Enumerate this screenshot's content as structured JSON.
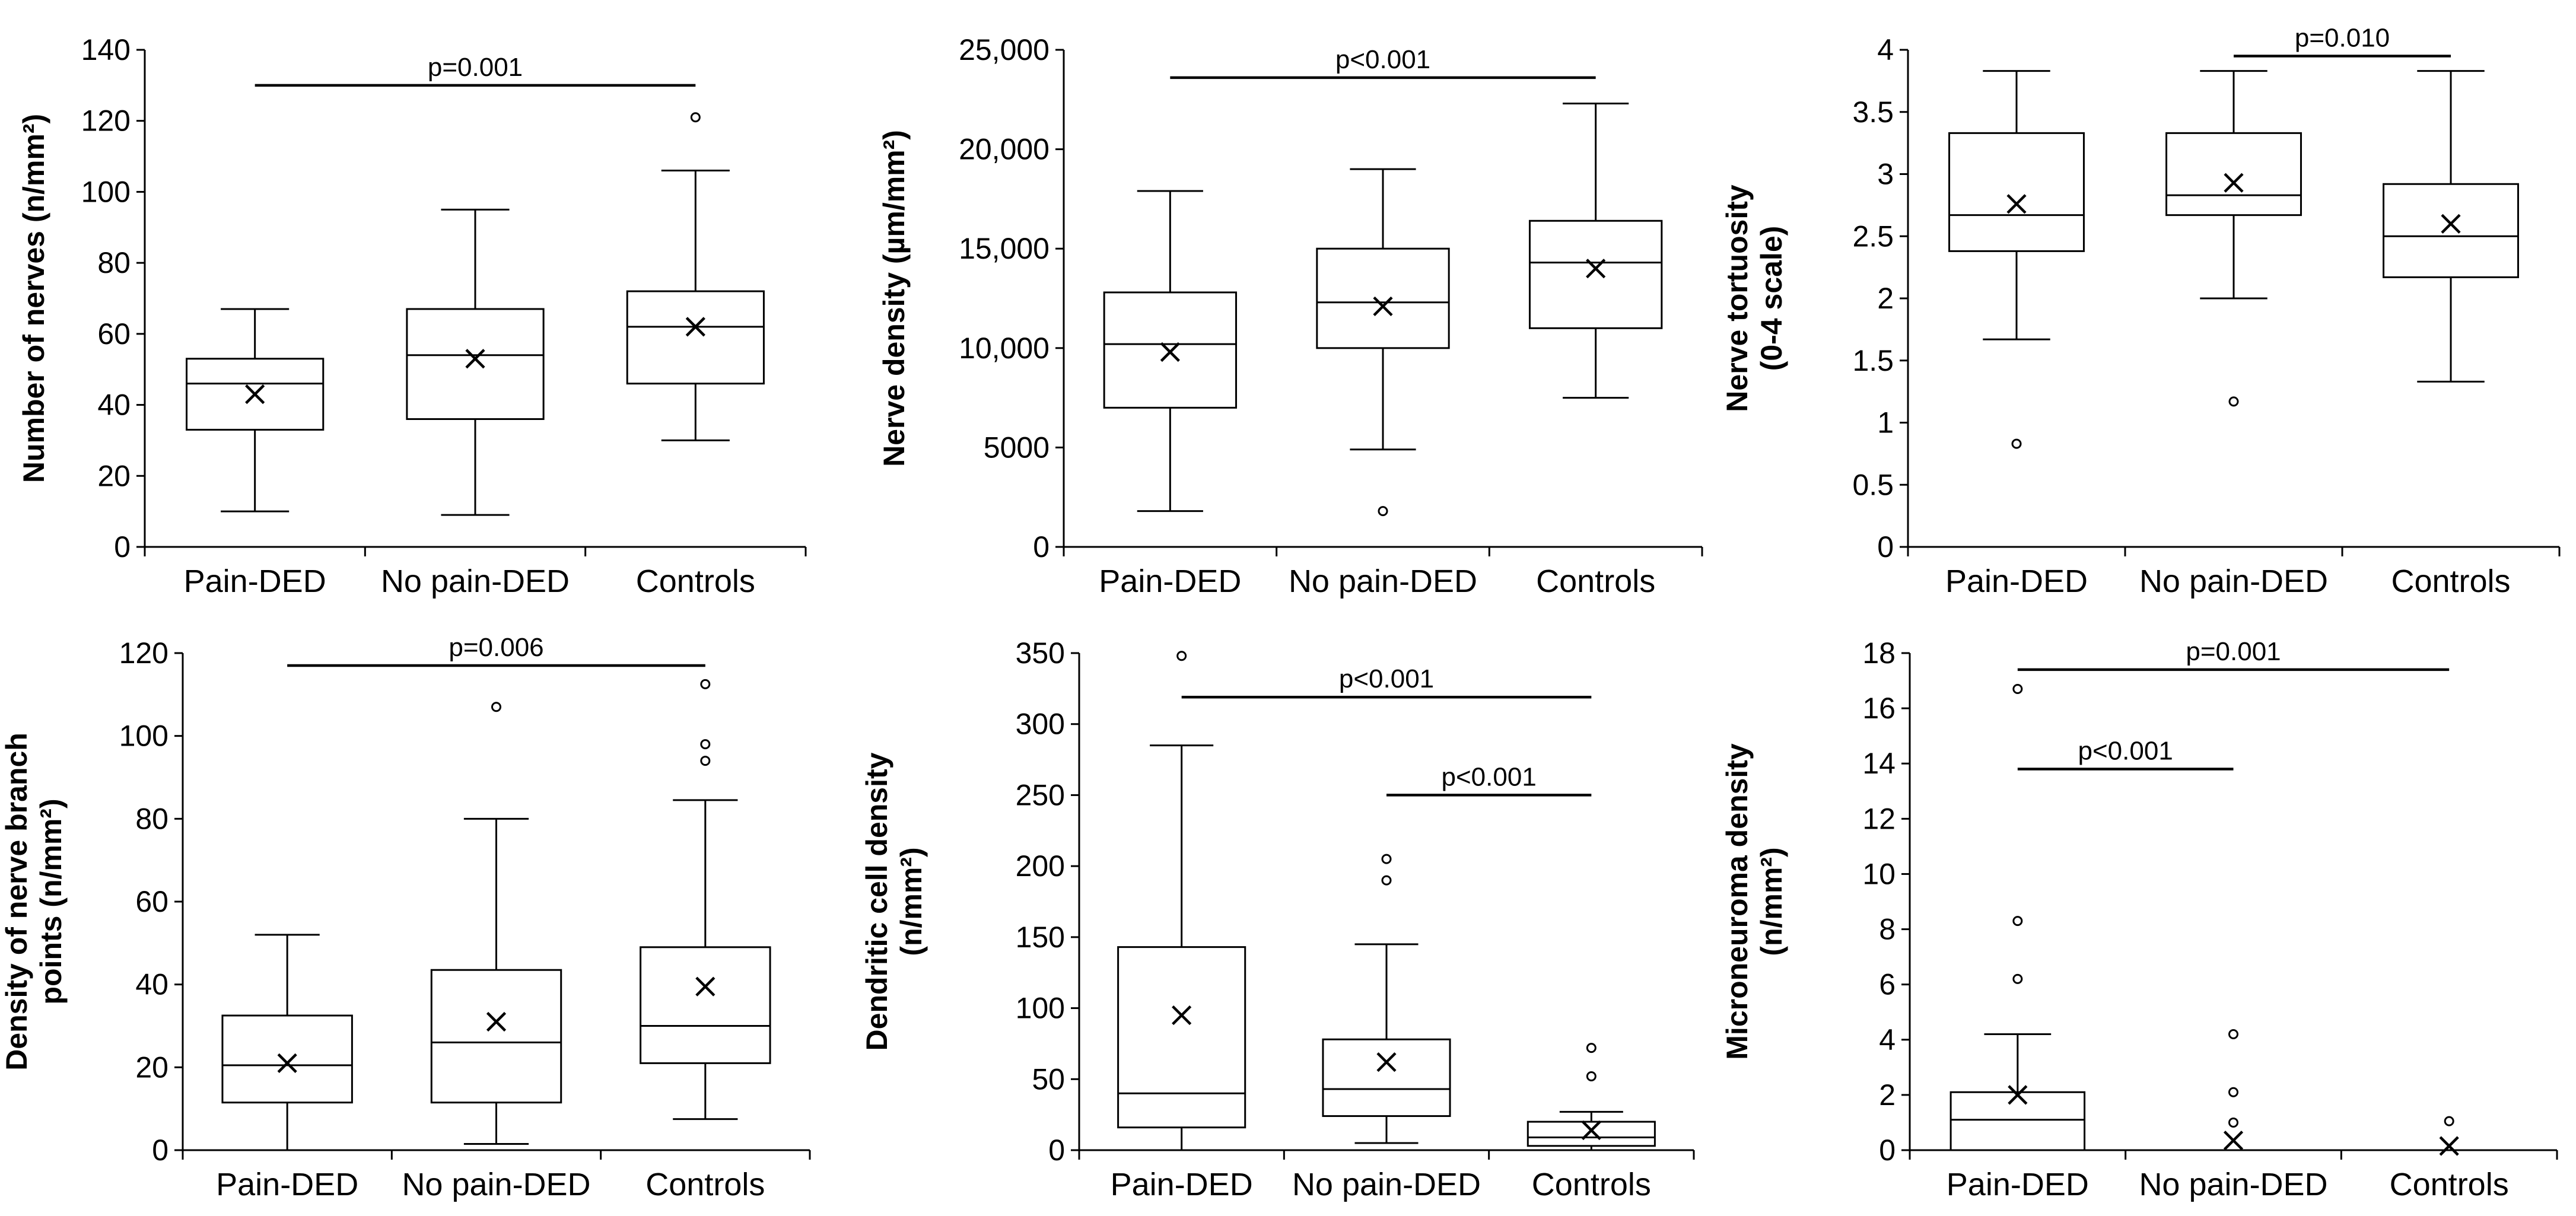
{
  "chart_data": [
    {
      "type": "box",
      "ylabel": [
        "Number of nerves (n/mm²)"
      ],
      "ylim": [
        0,
        140
      ],
      "yticks": [
        0,
        20,
        40,
        60,
        80,
        100,
        120,
        140
      ],
      "ytick_labels": [
        "0",
        "20",
        "40",
        "60",
        "80",
        "100",
        "120",
        "140"
      ],
      "categories": [
        "Pain-DED",
        "No pain-DED",
        "Controls"
      ],
      "boxes": [
        {
          "min": 10,
          "q1": 33,
          "median": 46,
          "q3": 53,
          "max": 67,
          "mean": 43,
          "outliers": []
        },
        {
          "min": 9,
          "q1": 36,
          "median": 54,
          "q3": 67,
          "max": 95,
          "mean": 53,
          "outliers": []
        },
        {
          "min": 30,
          "q1": 46,
          "median": 62,
          "q3": 72,
          "max": 106,
          "mean": 62,
          "outliers": [
            121
          ]
        }
      ],
      "significance": [
        {
          "from": 0,
          "to": 2,
          "y": 130,
          "label": "p=0.001"
        }
      ]
    },
    {
      "type": "box",
      "ylabel": [
        "Nerve density (µm/mm²)"
      ],
      "ylim": [
        0,
        25000
      ],
      "yticks": [
        0,
        5000,
        10000,
        15000,
        20000,
        25000
      ],
      "ytick_labels": [
        "0",
        "5000",
        "10,000",
        "15,000",
        "20,000",
        "25,000"
      ],
      "categories": [
        "Pain-DED",
        "No pain-DED",
        "Controls"
      ],
      "boxes": [
        {
          "min": 1800,
          "q1": 7000,
          "median": 10200,
          "q3": 12800,
          "max": 17900,
          "mean": 9800,
          "outliers": []
        },
        {
          "min": 4900,
          "q1": 10000,
          "median": 12300,
          "q3": 15000,
          "max": 19000,
          "mean": 12100,
          "outliers": [
            1800
          ]
        },
        {
          "min": 7500,
          "q1": 11000,
          "median": 14300,
          "q3": 16400,
          "max": 22300,
          "mean": 14000,
          "outliers": []
        }
      ],
      "significance": [
        {
          "from": 0,
          "to": 2,
          "y": 23600,
          "label": "p<0.001"
        }
      ]
    },
    {
      "type": "box",
      "ylabel": [
        "Nerve tortuosity",
        "(0-4 scale)"
      ],
      "ylim": [
        0,
        4
      ],
      "yticks": [
        0,
        0.5,
        1,
        1.5,
        2,
        2.5,
        3,
        3.5,
        4
      ],
      "ytick_labels": [
        "0",
        "0.5",
        "1",
        "1.5",
        "2",
        "2.5",
        "3",
        "3.5",
        "4"
      ],
      "categories": [
        "Pain-DED",
        "No pain-DED",
        "Controls"
      ],
      "boxes": [
        {
          "min": 1.67,
          "q1": 2.38,
          "median": 2.67,
          "q3": 3.33,
          "max": 3.83,
          "mean": 2.76,
          "outliers": [
            0.83
          ]
        },
        {
          "min": 2.0,
          "q1": 2.67,
          "median": 2.83,
          "q3": 3.33,
          "max": 3.83,
          "mean": 2.93,
          "outliers": [
            1.17
          ]
        },
        {
          "min": 1.33,
          "q1": 2.17,
          "median": 2.5,
          "q3": 2.92,
          "max": 3.83,
          "mean": 2.6,
          "outliers": []
        }
      ],
      "significance": [
        {
          "from": 1,
          "to": 2,
          "y": 3.95,
          "label": "p=0.010"
        }
      ]
    },
    {
      "type": "box",
      "ylabel": [
        "Density of nerve branch",
        "points (n/mm²)"
      ],
      "ylim": [
        0,
        120
      ],
      "yticks": [
        0,
        20,
        40,
        60,
        80,
        100,
        120
      ],
      "ytick_labels": [
        "0",
        "20",
        "40",
        "60",
        "80",
        "100",
        "120"
      ],
      "categories": [
        "Pain-DED",
        "No pain-DED",
        "Controls"
      ],
      "boxes": [
        {
          "min": 0,
          "q1": 11.5,
          "median": 20.5,
          "q3": 32.5,
          "max": 52,
          "mean": 21,
          "outliers": []
        },
        {
          "min": 1.5,
          "q1": 11.5,
          "median": 26,
          "q3": 43.5,
          "max": 80,
          "mean": 31,
          "outliers": [
            107
          ]
        },
        {
          "min": 7.5,
          "q1": 21,
          "median": 30,
          "q3": 49,
          "max": 84.5,
          "mean": 39.5,
          "outliers": [
            94,
            98,
            112.5
          ]
        }
      ],
      "significance": [
        {
          "from": 0,
          "to": 2,
          "y": 117,
          "label": "p=0.006"
        }
      ]
    },
    {
      "type": "box",
      "ylabel": [
        "Dendritic cell density",
        "(n/mm²)"
      ],
      "ylim": [
        0,
        350
      ],
      "yticks": [
        0,
        50,
        100,
        150,
        200,
        250,
        300,
        350
      ],
      "ytick_labels": [
        "0",
        "50",
        "100",
        "150",
        "200",
        "250",
        "300",
        "350"
      ],
      "categories": [
        "Pain-DED",
        "No pain-DED",
        "Controls"
      ],
      "boxes": [
        {
          "min": 0,
          "q1": 16,
          "median": 40,
          "q3": 143,
          "max": 285,
          "mean": 95,
          "outliers": [
            348
          ]
        },
        {
          "min": 5,
          "q1": 24,
          "median": 43,
          "q3": 78,
          "max": 145,
          "mean": 62,
          "outliers": [
            190,
            205
          ]
        },
        {
          "min": 0,
          "q1": 3,
          "median": 9,
          "q3": 20,
          "max": 27,
          "mean": 14,
          "outliers": [
            52,
            72
          ]
        }
      ],
      "significance": [
        {
          "from": 0,
          "to": 2,
          "y": 319,
          "label": "p<0.001"
        },
        {
          "from": 1,
          "to": 2,
          "y": 250,
          "label": "p<0.001"
        }
      ]
    },
    {
      "type": "box",
      "ylabel": [
        "Microneuroma density",
        "(n/mm²)"
      ],
      "ylim": [
        0,
        18
      ],
      "yticks": [
        0,
        2,
        4,
        6,
        8,
        10,
        12,
        14,
        16,
        18
      ],
      "ytick_labels": [
        "0",
        "2",
        "4",
        "6",
        "8",
        "10",
        "12",
        "14",
        "16",
        "18"
      ],
      "categories": [
        "Pain-DED",
        "No pain-DED",
        "Controls"
      ],
      "boxes": [
        {
          "min": 0,
          "q1": 0,
          "median": 1.1,
          "q3": 2.1,
          "max": 4.2,
          "mean": 2.0,
          "outliers": [
            6.2,
            8.3,
            16.7
          ]
        },
        {
          "min": 0,
          "q1": 0,
          "median": 0,
          "q3": 0,
          "max": 0,
          "mean": 0.35,
          "outliers": [
            1.0,
            2.1,
            4.2
          ]
        },
        {
          "min": 0,
          "q1": 0,
          "median": 0,
          "q3": 0,
          "max": 0,
          "mean": 0.15,
          "outliers": [
            1.05
          ]
        }
      ],
      "significance": [
        {
          "from": 0,
          "to": 2,
          "y": 17.4,
          "label": "p=0.001"
        },
        {
          "from": 0,
          "to": 1,
          "y": 13.8,
          "label": "p<0.001"
        }
      ]
    }
  ]
}
